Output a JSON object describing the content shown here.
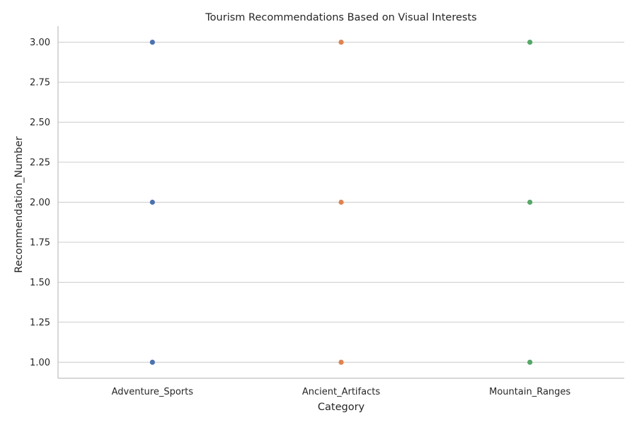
{
  "chart_data": {
    "type": "scatter",
    "title": "Tourism Recommendations Based on Visual Interests",
    "xlabel": "Category",
    "ylabel": "Recommendation_Number",
    "categories": [
      "Adventure_Sports",
      "Ancient_Artifacts",
      "Mountain_Ranges"
    ],
    "ylim": [
      0.9,
      3.1
    ],
    "yticks": [
      "1.00",
      "1.25",
      "1.50",
      "1.75",
      "2.00",
      "2.25",
      "2.50",
      "2.75",
      "3.00"
    ],
    "grid": "horizontal",
    "series": [
      {
        "category": "Adventure_Sports",
        "values": [
          1,
          2,
          3
        ],
        "color": "#4c72b0"
      },
      {
        "category": "Ancient_Artifacts",
        "values": [
          1,
          2,
          3
        ],
        "color": "#dd8452"
      },
      {
        "category": "Mountain_Ranges",
        "values": [
          1,
          2,
          3
        ],
        "color": "#55a868"
      }
    ]
  }
}
